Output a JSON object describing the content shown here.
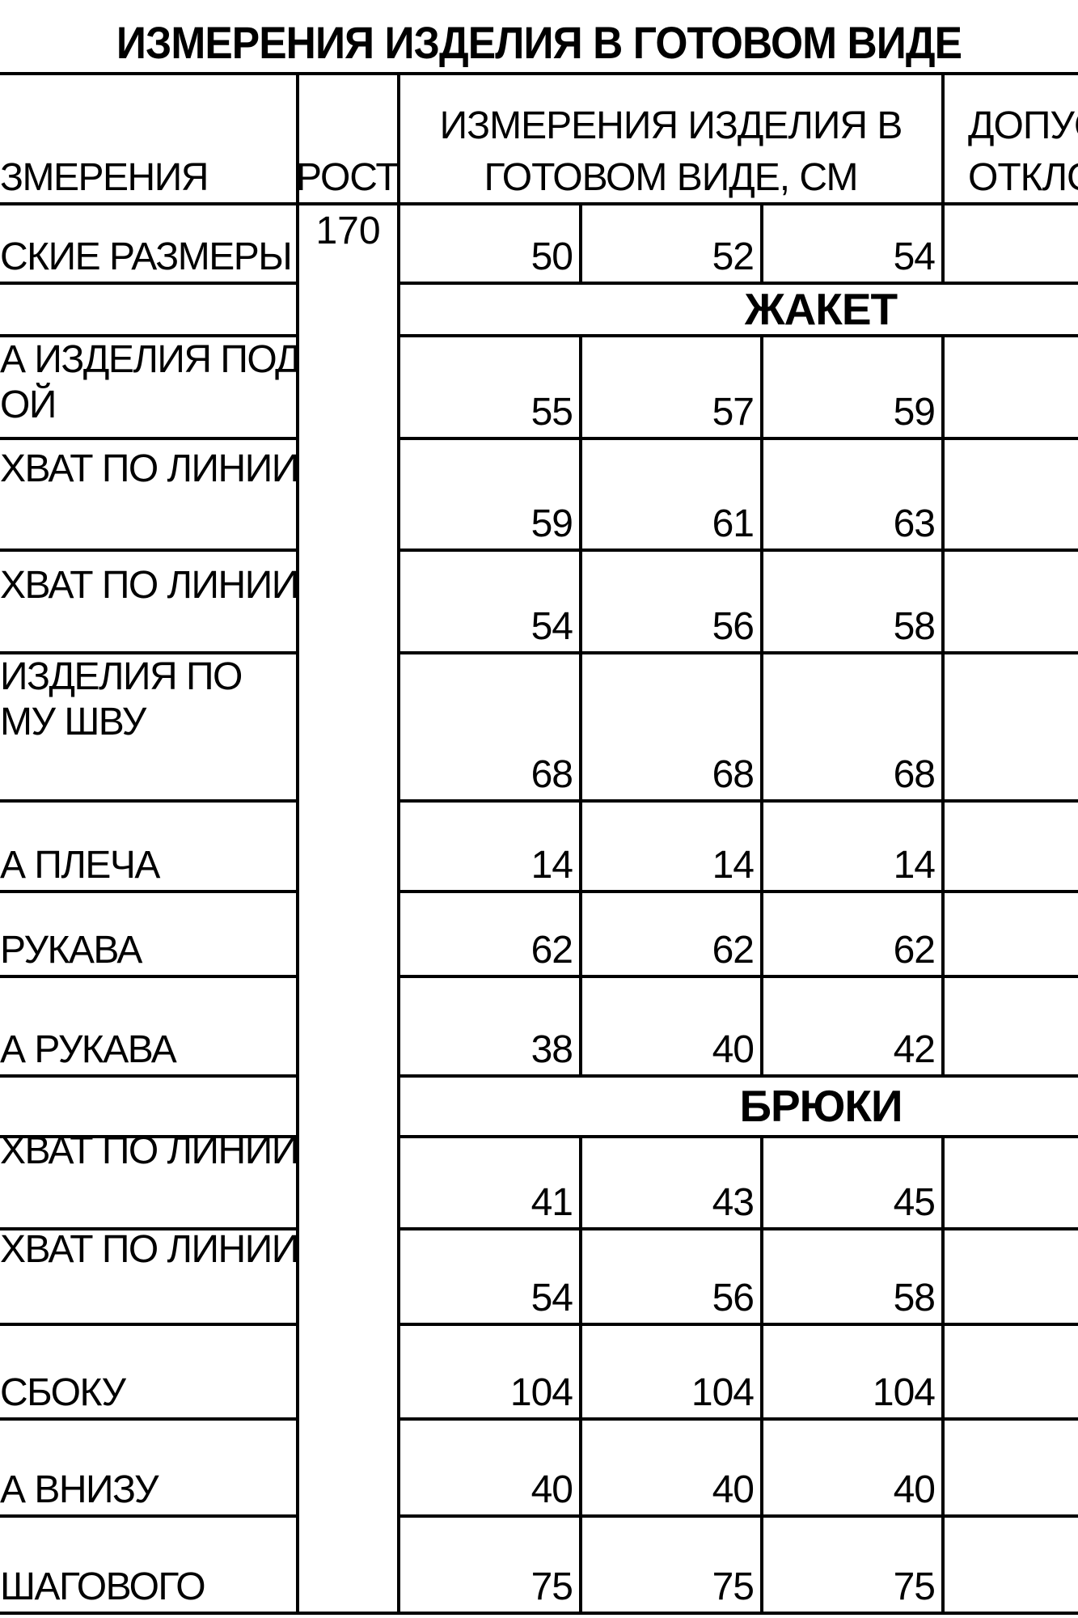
{
  "title": "ИЗМЕРЕНИЯ ИЗДЕЛИЯ В ГОТОВОМ ВИДЕ",
  "header": {
    "measurements_label": "ЗМЕРЕНИЯ",
    "height_label": "РОСТ",
    "finished_header_line1": "ИЗМЕРЕНИЯ ИЗДЕЛИЯ В",
    "finished_header_line2": "ГОТОВОМ ВИДЕ, СМ",
    "tolerance_line1": "ДОПУС",
    "tolerance_line2": "ОТКЛО"
  },
  "height_value": "170",
  "rows": [
    {
      "type": "data",
      "label_lines": [
        "СКИЕ РАЗМЕРЫ"
      ],
      "values": [
        "50",
        "52",
        "54"
      ]
    },
    {
      "type": "section",
      "label": "ЖАКЕТ"
    },
    {
      "type": "data",
      "label_lines": [
        "А ИЗДЕЛИЯ ПОД",
        "ОЙ"
      ],
      "values": [
        "55",
        "57",
        "59"
      ]
    },
    {
      "type": "data",
      "label_lines": [
        "ХВАТ ПО ЛИНИИ"
      ],
      "values": [
        "59",
        "61",
        "63"
      ]
    },
    {
      "type": "data",
      "label_lines": [
        "ХВАТ ПО ЛИНИИ"
      ],
      "values": [
        "54",
        "56",
        "58"
      ]
    },
    {
      "type": "data",
      "label_lines": [
        "ИЗДЕЛИЯ ПО",
        "МУ ШВУ"
      ],
      "values": [
        "68",
        "68",
        "68"
      ]
    },
    {
      "type": "data",
      "label_lines": [
        "А ПЛЕЧА"
      ],
      "values": [
        "14",
        "14",
        "14"
      ]
    },
    {
      "type": "data",
      "label_lines": [
        "РУКАВА"
      ],
      "values": [
        "62",
        "62",
        "62"
      ]
    },
    {
      "type": "data",
      "label_lines": [
        "А РУКАВА"
      ],
      "values": [
        "38",
        "40",
        "42"
      ]
    },
    {
      "type": "section",
      "label": "БРЮКИ"
    },
    {
      "type": "data",
      "label_lines": [
        "ХВАТ ПО ЛИНИИ"
      ],
      "values": [
        "41",
        "43",
        "45"
      ]
    },
    {
      "type": "data",
      "label_lines": [
        "ХВАТ ПО ЛИНИИ"
      ],
      "values": [
        "54",
        "56",
        "58"
      ]
    },
    {
      "type": "data",
      "label_lines": [
        "СБОКУ"
      ],
      "values": [
        "104",
        "104",
        "104"
      ]
    },
    {
      "type": "data",
      "label_lines": [
        "А ВНИЗУ"
      ],
      "values": [
        "40",
        "40",
        "40"
      ]
    },
    {
      "type": "data",
      "label_lines": [
        "ШАГОВОГО"
      ],
      "values": [
        "75",
        "75",
        "75"
      ]
    }
  ]
}
